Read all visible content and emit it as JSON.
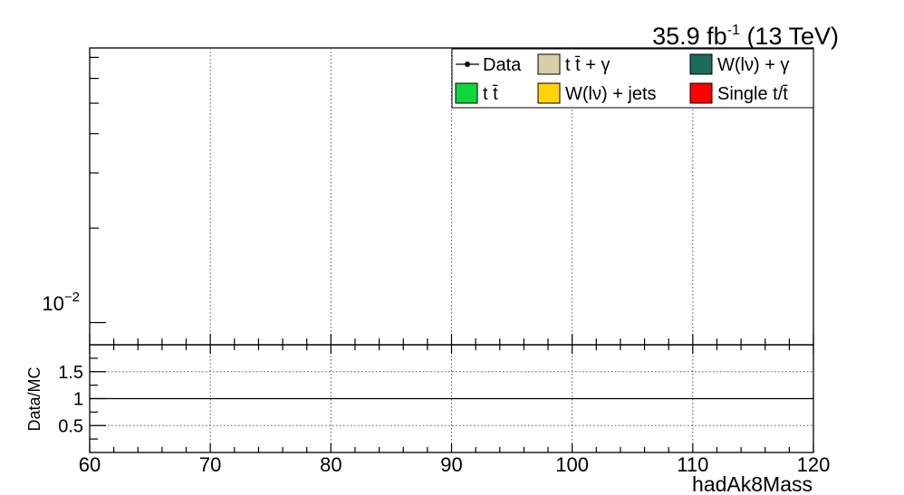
{
  "chart_data": [
    {
      "type": "bar",
      "panel": "main",
      "title": "",
      "lumi_label": {
        "value": "35.9 fb",
        "exponent": "-1",
        "suffix": " (13 TeV)"
      },
      "xlim": [
        60,
        120
      ],
      "y_scale": "log",
      "y_tick_label": {
        "base": "10",
        "exponent": "−2",
        "value": 0.01
      },
      "grid": {
        "x": true,
        "y": false
      },
      "legend_placement": "top-right",
      "legend": [
        {
          "label": "Data",
          "kind": "marker",
          "color": "#000000"
        },
        {
          "label": "t t̄ + γ",
          "kind": "box",
          "color": "#d7cfa8"
        },
        {
          "label": "W(lν) + γ",
          "kind": "box",
          "color": "#1b6b5b"
        },
        {
          "label": "t t̄",
          "kind": "box",
          "color": "#11d63a"
        },
        {
          "label": "W(lν) + jets",
          "kind": "box",
          "color": "#ffd20a"
        },
        {
          "label": "Single t/t̄",
          "kind": "box",
          "color": "#ff0000"
        }
      ],
      "series": []
    },
    {
      "type": "line",
      "panel": "ratio",
      "ylabel": "Data/MC",
      "xlabel": "hadAk8Mass",
      "xlim": [
        60,
        120
      ],
      "ylim": [
        0,
        2
      ],
      "x_ticks": [
        "60",
        "70",
        "80",
        "90",
        "100",
        "110",
        "120"
      ],
      "y_ticks": [
        "0.5",
        "1",
        "1.5"
      ],
      "reference_line": 1,
      "grid": {
        "x": true,
        "y": true
      },
      "series": []
    }
  ]
}
